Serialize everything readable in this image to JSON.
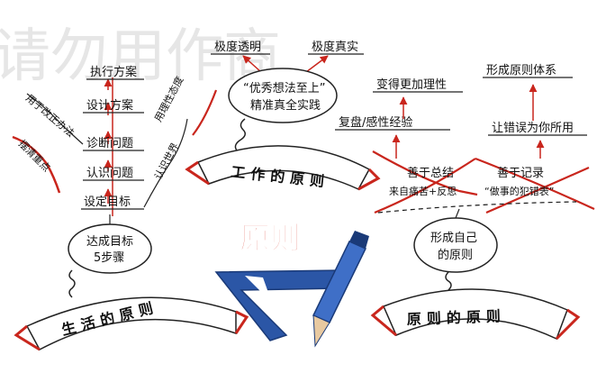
{
  "watermark": "请勿用作商",
  "center_title": "原则",
  "life": {
    "banner": "生活的原则",
    "bubble": [
      "达成目标",
      "5步骤"
    ],
    "steps": [
      "设定目标",
      "认识问题",
      "诊断问题",
      "设计方案",
      "执行方案"
    ],
    "side_left": [
      "用于改正办法",
      "摆清重点"
    ],
    "side_right": [
      "认识世界",
      "用理性态度"
    ]
  },
  "work": {
    "banner": "工作的原则",
    "bubble": [
      "“优秀想法至上”",
      "精准真全实践"
    ],
    "top": [
      "极度透明",
      "极度真实"
    ]
  },
  "principles": {
    "banner": "原则的原则",
    "bubble": [
      "形成自己",
      "的原则"
    ],
    "left_chain": [
      "善于总结",
      "来自痛苦+反思",
      "复盘/感性经验",
      "变得更加理性"
    ],
    "right_chain": [
      "善于记录",
      "“做事的犯错表”",
      "让错误为你所用",
      "形成原则体系"
    ]
  }
}
